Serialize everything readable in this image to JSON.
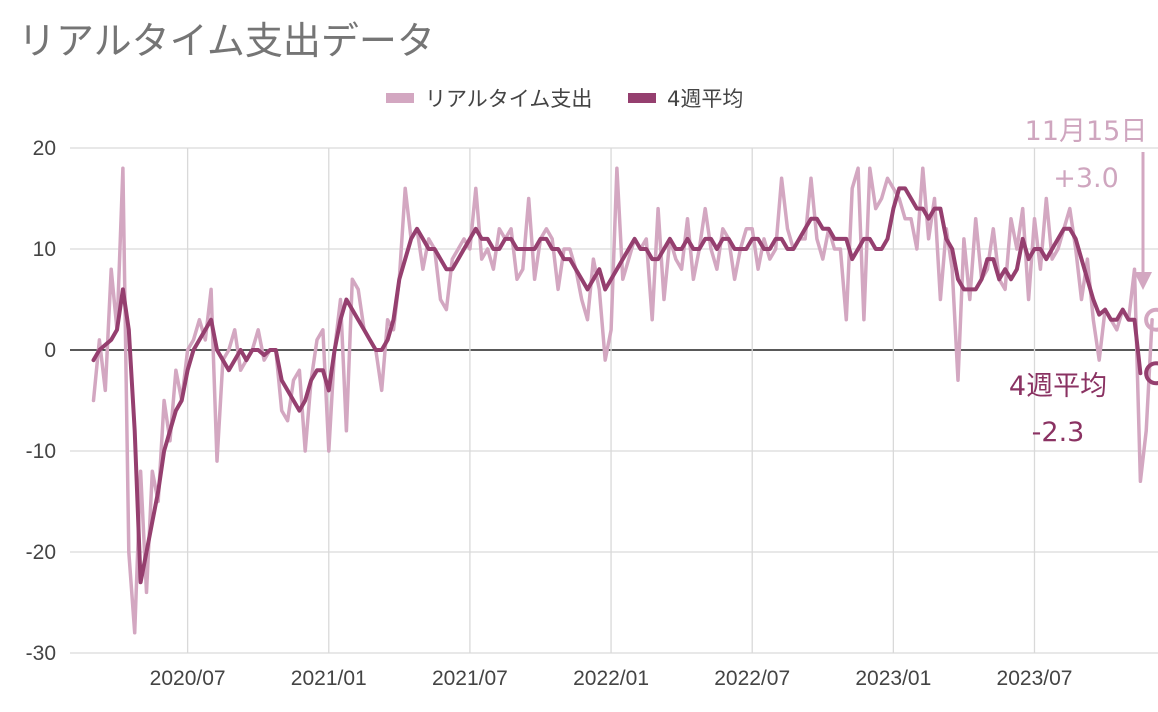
{
  "colors": {
    "realtime": "#d3a7c1",
    "avg4w": "#953f6f",
    "grid": "#d9d9d9",
    "zero_line": "#222222",
    "title": "#757575"
  },
  "chart_data": {
    "type": "line",
    "title": "リアルタイム支出データ",
    "legend": {
      "position": "top",
      "entries": [
        "リアルタイム支出",
        "4週平均"
      ]
    },
    "y_range": [
      -30,
      20
    ],
    "y_ticks": [
      "20",
      "10",
      "0",
      "-10",
      "-20",
      "-30"
    ],
    "y_tick_values": [
      20,
      10,
      0,
      -10,
      -20,
      -30
    ],
    "x_tick_labels": [
      "2020/07",
      "2021/01",
      "2021/07",
      "2022/01",
      "2022/07",
      "2023/01",
      "2023/07"
    ],
    "x_tick_indices": [
      16,
      40,
      64,
      88,
      112,
      136,
      160
    ],
    "x_range_index": [
      -4,
      181
    ],
    "grid": true,
    "series": [
      {
        "name": "リアルタイム支出",
        "values": [
          -5,
          1,
          -4,
          8,
          2,
          18,
          -20,
          -28,
          -12,
          -24,
          -12,
          -15,
          -5,
          -9,
          -2,
          -5,
          0,
          1,
          3,
          1,
          6,
          -11,
          -1,
          0,
          2,
          -2,
          -1,
          0,
          2,
          -1,
          0,
          0,
          -6,
          -7,
          -3,
          -2,
          -10,
          -3,
          1,
          2,
          -10,
          0,
          5,
          -8,
          7,
          6,
          2,
          1,
          0,
          -4,
          3,
          2,
          7,
          16,
          11,
          12,
          8,
          11,
          10,
          5,
          4,
          9,
          10,
          11,
          10,
          16,
          9,
          10,
          8,
          12,
          11,
          12,
          7,
          8,
          15,
          7,
          11,
          12,
          11,
          6,
          10,
          10,
          8,
          5,
          3,
          9,
          6,
          -1,
          2,
          18,
          7,
          9,
          11,
          10,
          11,
          3,
          14,
          5,
          11,
          9,
          8,
          13,
          7,
          10,
          14,
          10,
          8,
          12,
          11,
          7,
          10,
          12,
          12,
          8,
          11,
          9,
          10,
          17,
          12,
          10,
          11,
          11,
          17,
          11,
          9,
          12,
          10,
          10,
          3,
          16,
          18,
          3,
          18,
          14,
          15,
          17,
          16,
          15,
          13,
          13,
          10,
          18,
          11,
          15,
          5,
          12,
          8,
          -3,
          11,
          5,
          13,
          7,
          8,
          12,
          7,
          6,
          13,
          10,
          14,
          5,
          13,
          8,
          15,
          9,
          10,
          12,
          14,
          10,
          5,
          9,
          3,
          -1,
          4,
          3,
          2,
          4,
          3,
          8,
          -13,
          -8,
          3
        ]
      },
      {
        "name": "4週平均",
        "values": [
          -1,
          0,
          0.5,
          1,
          2,
          6,
          2,
          -8,
          -23,
          -20,
          -17,
          -14,
          -10,
          -8,
          -6,
          -5,
          -2,
          0,
          1,
          2,
          3,
          0,
          -1,
          -2,
          -1,
          0,
          -1,
          0,
          0,
          -0.5,
          0,
          0,
          -3,
          -4,
          -5,
          -6,
          -5,
          -3,
          -2,
          -2,
          -4,
          0,
          3,
          5,
          4,
          3,
          2,
          1,
          0,
          0,
          1,
          3,
          7,
          9,
          11,
          12,
          11,
          10,
          10,
          9,
          8,
          8,
          9,
          10,
          11,
          12,
          11,
          11,
          10,
          10,
          11,
          11,
          10,
          10,
          10,
          10,
          11,
          11,
          10,
          10,
          9,
          9,
          8,
          7,
          6,
          7,
          8,
          6,
          7,
          8,
          9,
          10,
          11,
          10,
          10,
          9,
          9,
          10,
          11,
          10,
          10,
          11,
          10,
          10,
          11,
          11,
          10,
          11,
          11,
          10,
          10,
          10,
          11,
          11,
          10,
          10,
          11,
          11,
          10,
          10,
          11,
          12,
          13,
          13,
          12,
          12,
          11,
          11,
          11,
          9,
          10,
          11,
          11,
          10,
          10,
          11,
          14,
          16,
          16,
          15,
          14,
          14,
          13,
          14,
          14,
          11,
          10,
          7,
          6,
          6,
          6,
          7,
          9,
          9,
          7,
          8,
          7,
          8,
          11,
          9,
          10,
          10,
          9,
          10,
          11,
          12,
          12,
          11,
          9,
          7,
          5,
          3.5,
          4,
          3,
          3,
          4,
          3,
          3,
          -2.3
        ]
      }
    ],
    "annotations": {
      "realtime_label": "11月15日",
      "realtime_value": "+3.0",
      "realtime_marker_value": 3.0,
      "avg_label": "4週平均",
      "avg_value": "-2.3",
      "avg_marker_value": -2.3
    }
  }
}
